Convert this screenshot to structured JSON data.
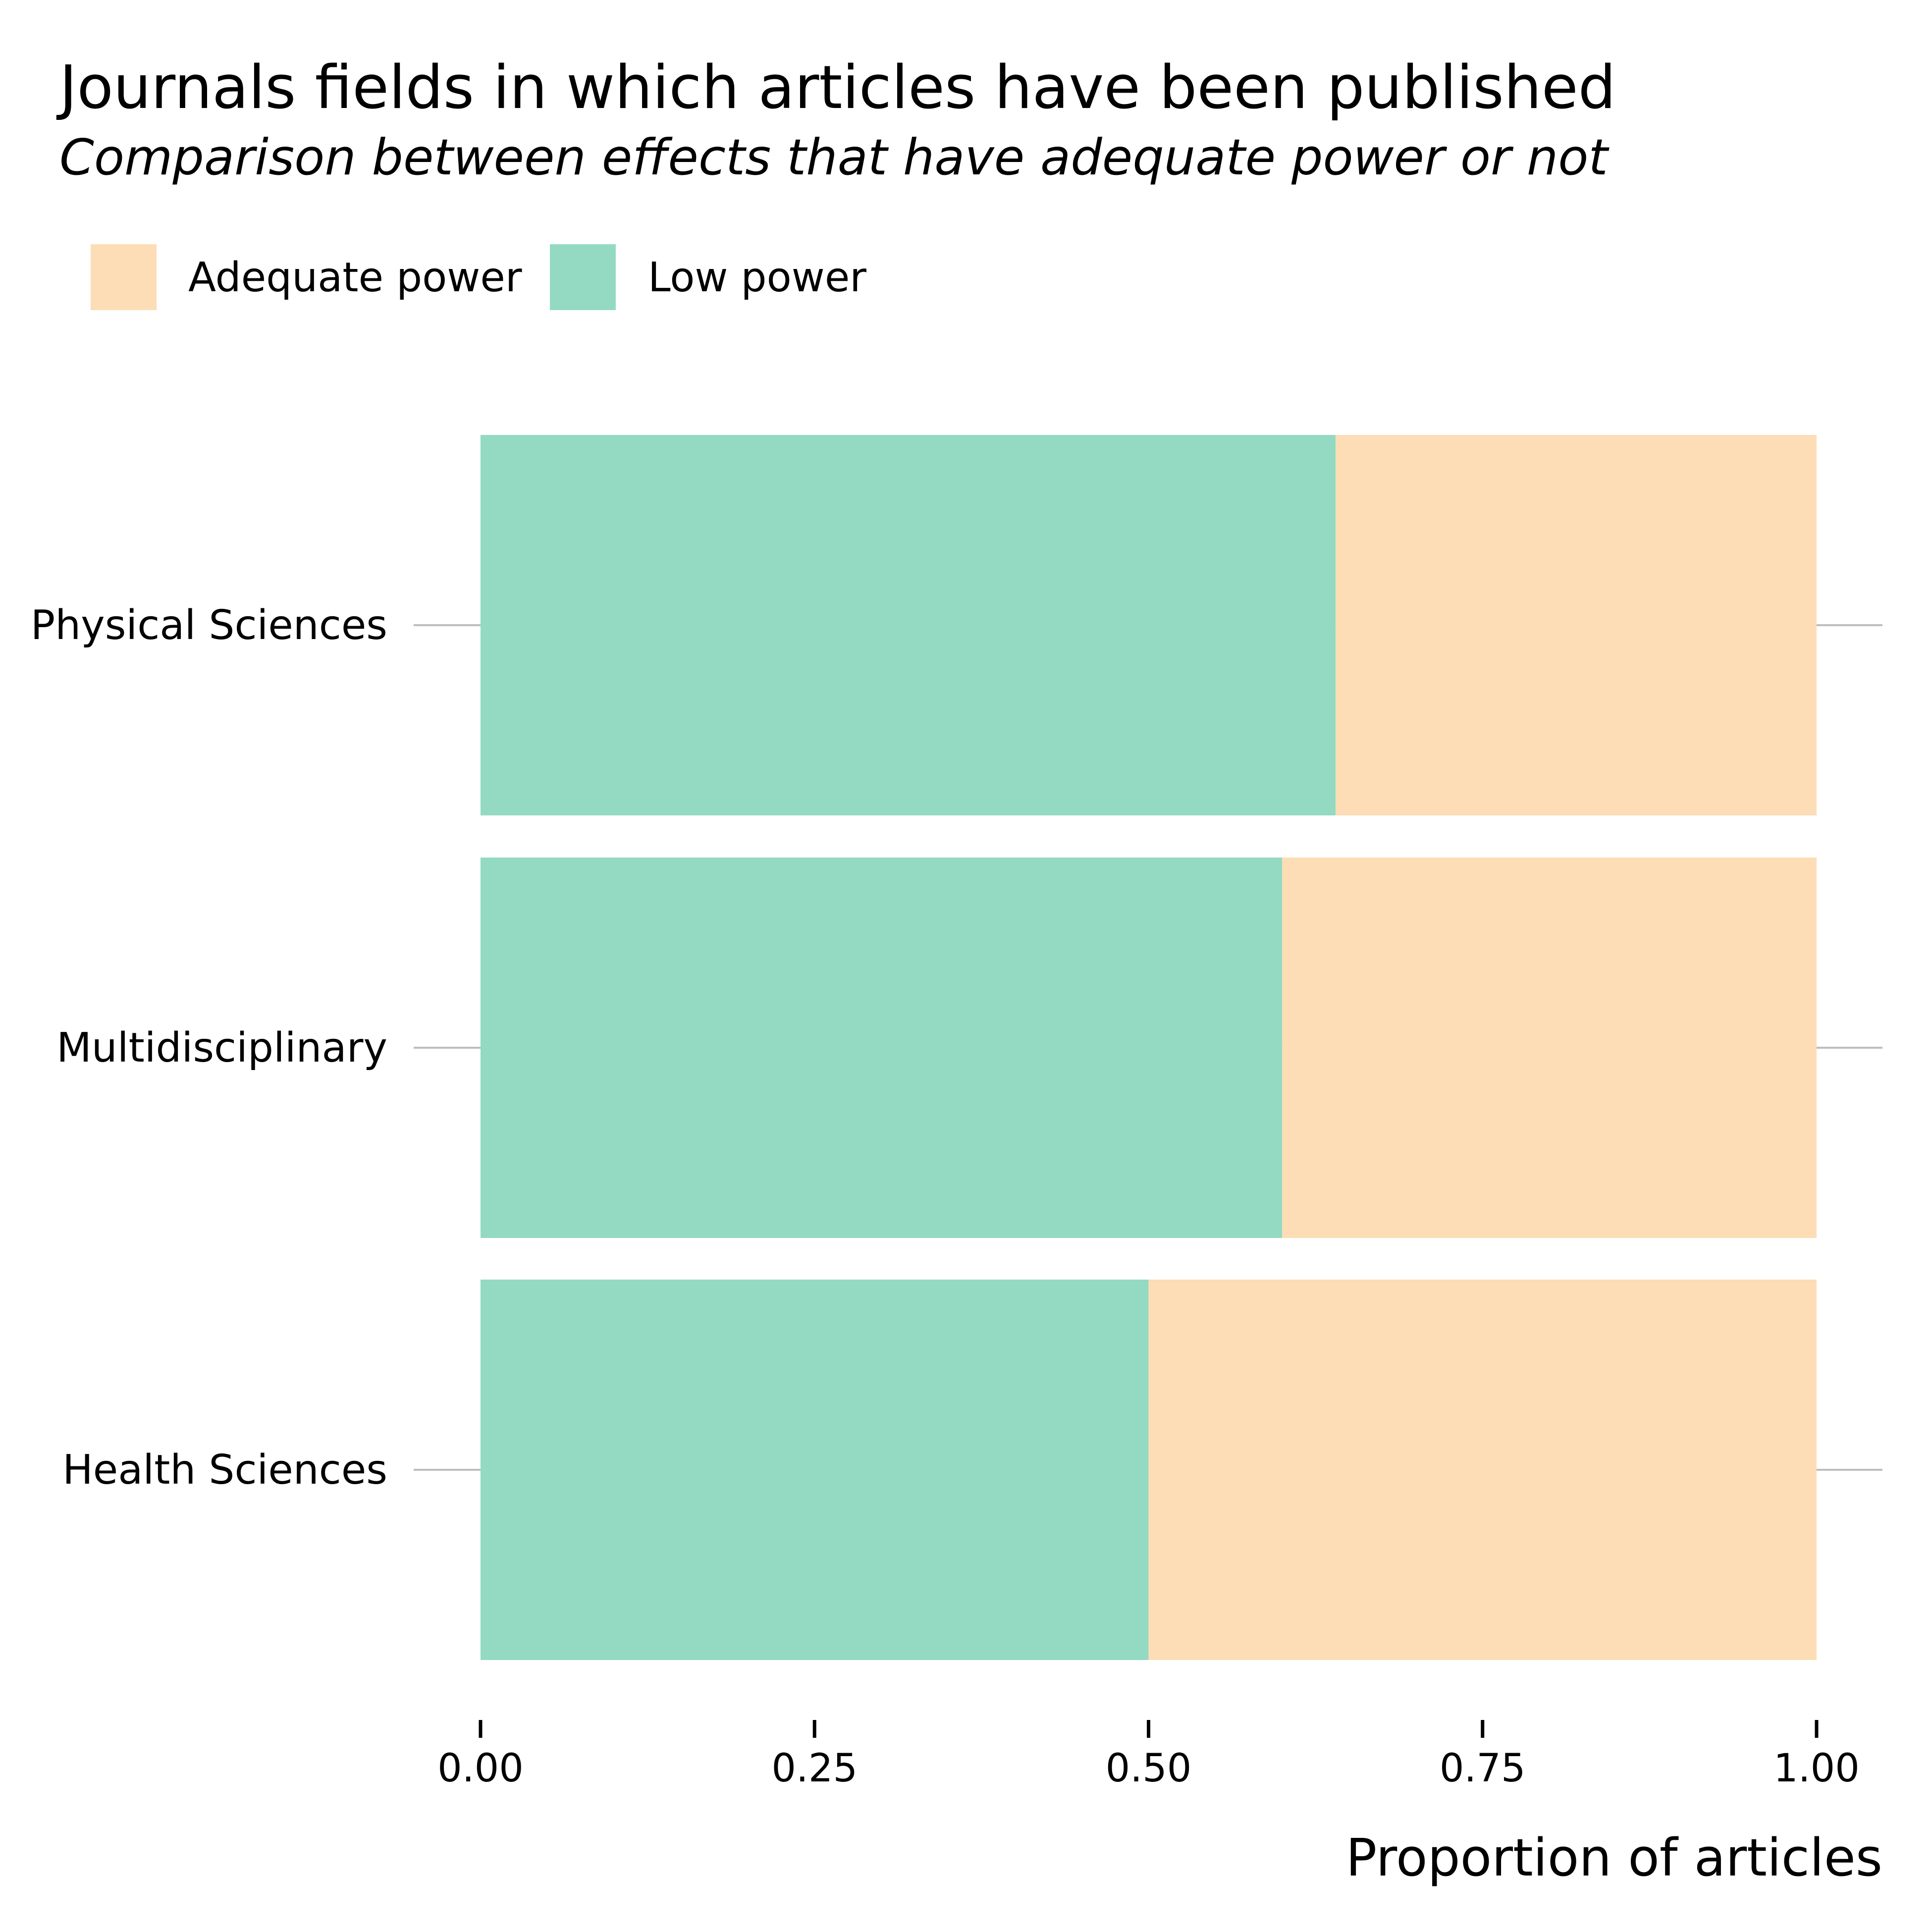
{
  "chart_data": {
    "type": "bar",
    "orientation": "horizontal",
    "stacked": true,
    "title": "Journals fields in which articles have been published",
    "subtitle": "Comparison between effects that have adequate power or not",
    "xlabel": "Proportion of articles",
    "ylabel": "",
    "xlim": [
      0,
      1
    ],
    "x_ticks": [
      0,
      0.25,
      0.5,
      0.75,
      1
    ],
    "x_tick_labels": [
      "0.00",
      "0.25",
      "0.50",
      "0.75",
      "1.00"
    ],
    "categories": [
      "Physical Sciences",
      "Multidisciplinary",
      "Health Sciences"
    ],
    "legend_position": "top-left",
    "legend": [
      {
        "name": "Adequate power",
        "color": "#FCDDB5"
      },
      {
        "name": "Low power",
        "color": "#94DAC3"
      }
    ],
    "series": [
      {
        "name": "Low power",
        "color": "#94DAC3",
        "values": [
          0.64,
          0.6,
          0.5
        ]
      },
      {
        "name": "Adequate power",
        "color": "#FCDDB5",
        "values": [
          0.36,
          0.4,
          0.5
        ]
      }
    ],
    "grid": "horizontal major only"
  }
}
